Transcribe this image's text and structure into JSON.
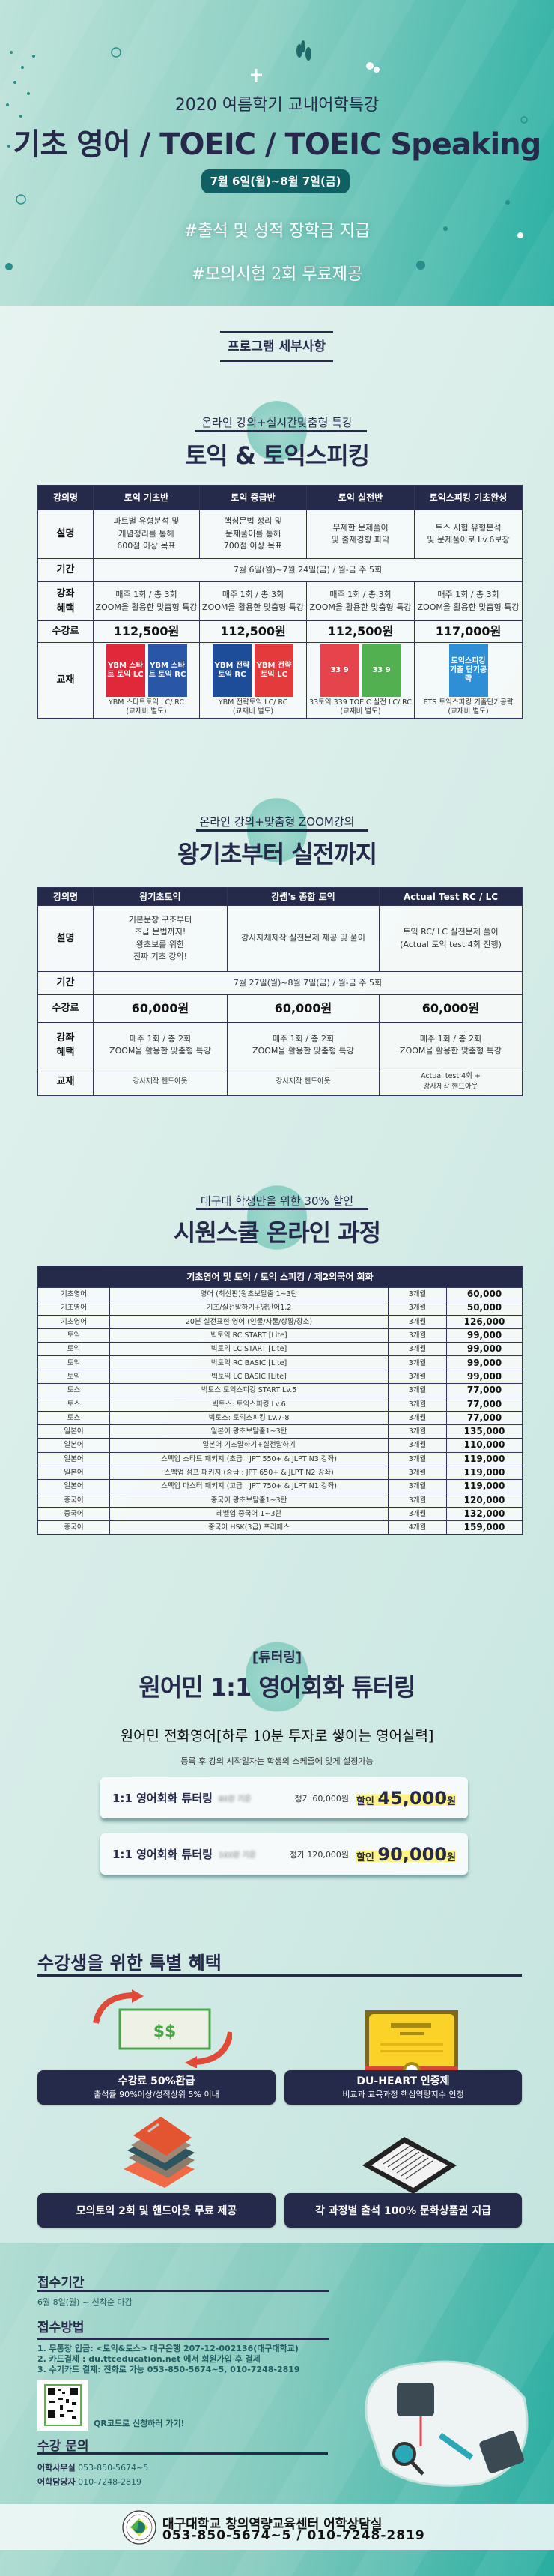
{
  "header": {
    "subtitle": "2020 여름학기 교내어학특강",
    "title": "기초 영어 / TOEIC / TOEIC Speaking",
    "date": "7월 6일(월)~8월 7일(금)",
    "hashtags": [
      "#출석 및 성적 장학금 지급",
      "#모의시험 2회 무료제공"
    ]
  },
  "program_label": "프로그램 세부사항",
  "section1": {
    "subtitle": "온라인 강의+실시간맞춤형 특강",
    "title": "토익 & 토익스피킹",
    "headers": [
      "강의명",
      "토익 기초반",
      "토익 중급반",
      "토익 실전반",
      "토익스피킹 기초완성"
    ],
    "row_labels": {
      "description": "설명",
      "period": "기간",
      "benefit": "강좌\n혜택",
      "fee": "수강료",
      "textbook": "교재"
    },
    "descriptions": [
      "파트별 유형분석 및\n개념정리를 통해\n600점 이상 목표",
      "핵심문법 정리 및\n문제풀이를 통해\n700점 이상 목표",
      "무제한 문제풀이\n및 출제경향 파악",
      "토스 시험 유형분석\n및 문제풀이로 Lv.6보장"
    ],
    "period": "7월 6일(월)~7월 24일(금) / 월-금  주 5회",
    "benefits": [
      "매주 1회 / 총 3회\nZOOM을 활용한 맞춤형 특강",
      "매주 1회 / 총 3회\nZOOM을 활용한 맞춤형 특강",
      "매주 1회 / 총 3회\nZOOM을 활용한 맞춤형 특강",
      "매주 1회 / 총 3회\nZOOM을 활용한 맞춤형 특강"
    ],
    "fees": [
      "112,500원",
      "112,500원",
      "112,500원",
      "117,000원"
    ],
    "textbooks": [
      {
        "covers": [
          {
            "label": "YBM 스타트 토익 LC",
            "color": "#e0283a"
          },
          {
            "label": "YBM 스타트 토익 RC",
            "color": "#2a56a8"
          }
        ],
        "caption": "YBM 스타트토익 LC/ RC\n(교재비 별도)"
      },
      {
        "covers": [
          {
            "label": "YBM 전략토익 RC",
            "color": "#1d4c98"
          },
          {
            "label": "YBM 전략토익 LC",
            "color": "#e43a3c"
          }
        ],
        "caption": "YBM 전략토익 LC/ RC\n(교재비 별도)"
      },
      {
        "covers": [
          {
            "label": "33 9",
            "color": "#e5444d"
          },
          {
            "label": "33 9",
            "color": "#52b050"
          }
        ],
        "caption": "33토익 339 TOEIC 실전 LC/ RC\n(교재비 별도)"
      },
      {
        "covers": [
          {
            "label": "토익스피킹 기출 단기공략",
            "color": "#2f8fd6"
          }
        ],
        "caption": "ETS 토익스피킹 기출단기공략\n(교재비 별도)"
      }
    ]
  },
  "section2": {
    "subtitle": "온라인 강의+맞춤형 ZOOM강의",
    "title": "왕기초부터 실전까지",
    "headers": [
      "강의명",
      "왕기초토익",
      "강쌤's 종합 토익",
      "Actual Test RC / LC"
    ],
    "row_labels": {
      "description": "설명",
      "period": "기간",
      "fee": "수강료",
      "benefit": "강좌\n혜택",
      "textbook": "교재"
    },
    "descriptions": [
      "기본문장 구조부터\n초급 문법까지!\n왕초보를 위한\n진짜 기초 강의!",
      "강사자체제작 실전문제 제공 및 풀이",
      "토익 RC/ LC 실전문제 풀이\n(Actual 토익 test 4회 진행)"
    ],
    "period": "7월 27일(월)~8월 7일(금) / 월-금  주 5회",
    "fees": [
      "60,000원",
      "60,000원",
      "60,000원"
    ],
    "benefits": [
      "매주 1회 / 총 2회\nZOOM을 활용한 맞춤형 특강",
      "매주 1회 / 총 2회\nZOOM을 활용한 맞춤형 특강",
      "매주 1회 / 총 2회\nZOOM을 활용한 맞춤형 특강"
    ],
    "textbooks": [
      "강사제작 핸드아웃",
      "강사제작 핸드아웃",
      "Actual test 4회 +\n강사제작 핸드아웃"
    ]
  },
  "section3": {
    "subtitle": "대구대 학생만을 위한 30% 할인",
    "title": "시원스쿨 온라인 과정",
    "table_header": "기초영어 및 토익 / 토익 스피킹 / 제2외국어 회화",
    "rows": [
      [
        "기초영어",
        "영어 (최신판)왕초보탈출 1~3탄",
        "3개월",
        "60,000"
      ],
      [
        "기초영어",
        "기초/실전말하기+영단어1,2",
        "3개월",
        "50,000"
      ],
      [
        "기초영어",
        "20분 실전표현 영어 (인물/사물/상황/장소)",
        "3개월",
        "126,000"
      ],
      [
        "토익",
        "빅토익 RC START [Lite]",
        "3개월",
        "99,000"
      ],
      [
        "토익",
        "빅토익 LC START [Lite]",
        "3개월",
        "99,000"
      ],
      [
        "토익",
        "빅토익 RC BASIC [Lite]",
        "3개월",
        "99,000"
      ],
      [
        "토익",
        "빅토익 LC BASIC [Lite]",
        "3개월",
        "99,000"
      ],
      [
        "토스",
        "빅토스 토익스피킹 START Lv.5",
        "3개월",
        "77,000"
      ],
      [
        "토스",
        "빅토스: 토익스피킹 Lv.6",
        "3개월",
        "77,000"
      ],
      [
        "토스",
        "빅토스: 토익스피킹 Lv.7-8",
        "3개월",
        "77,000"
      ],
      [
        "일본어",
        "일본어 왕초보탈출1~3탄",
        "3개월",
        "135,000"
      ],
      [
        "일본어",
        "일본어 기초말하기+실전말하기",
        "3개월",
        "110,000"
      ],
      [
        "일본어",
        "스펙업 스타트 패키지 (초급 : JPT 550+ & JLPT N3 강좌)",
        "3개월",
        "119,000"
      ],
      [
        "일본어",
        "스펙업 점프 패키지 (중급 : JPT 650+ & JLPT N2 강좌)",
        "3개월",
        "119,000"
      ],
      [
        "일본어",
        "스펙업 마스터 패키지 (고급 : JPT 750+ & JLPT N1 강좌)",
        "3개월",
        "119,000"
      ],
      [
        "중국어",
        "중국어 왕초보탈출1~3탄",
        "3개월",
        "120,000"
      ],
      [
        "중국어",
        "레벨업 중국어 1~3탄",
        "3개월",
        "132,000"
      ],
      [
        "중국어",
        "중국어 HSK(3급) 프리패스",
        "4개월",
        "159,000"
      ]
    ]
  },
  "tutoring": {
    "tag": "[튜터링]",
    "title": "원어민 1:1 영어회화 튜터링",
    "slogan": "원어민 전화영어[하루 10분 투자로 쌓이는 영어실력]",
    "note": "등록 후 강의 시작일자는 학생의 스케줄에 맞게 설정가능",
    "plans": [
      {
        "name": "1:1 영어회화 튜터링",
        "basis": "80분 기준",
        "regular": "정가 60,000원",
        "discount_label": "할인",
        "price": "45,000",
        "unit": "원"
      },
      {
        "name": "1:1 영어회화 튜터링",
        "basis": "160분 기준",
        "regular": "정가 120,000원",
        "discount_label": "할인",
        "price": "90,000",
        "unit": "원"
      }
    ]
  },
  "benefits": {
    "title": "수강생을 위한 특별 혜택",
    "money_icon_text": "$$",
    "items": [
      {
        "title": "수강료 50%환급",
        "desc": "출석률 90%이상/성적상위 5% 이내"
      },
      {
        "title": "DU-HEART 인증제",
        "desc": "비교과 교육과정 핵심역량지수 인정"
      },
      {
        "title": "모의토익 2회 및 핸드아웃 무료 제공",
        "desc": ""
      },
      {
        "title": "각 과정별 출석 100% 문화상품권 지급",
        "desc": ""
      }
    ]
  },
  "footer": {
    "period_title": "접수기간",
    "period": "6월 8일(월) ~ 선착순 마감",
    "method_title": "접수방법",
    "methods": [
      "1. 무통장 입금: <토익&토스> 대구은행 207-12-002136(대구대학교)",
      "2. 카드결제 : du.ttceducation.net 에서 회원가입 후 결제",
      "3. 수기카드 결제: 전화로 가능 053-850-5674~5, 010-7248-2819"
    ],
    "qr_text": "QR코드로 신청하러 가기!",
    "contact_title": "수강 문의",
    "contacts": [
      {
        "label": "어학사무실",
        "value": "053-850-5674~5"
      },
      {
        "label": "어학담당자",
        "value": "010-7248-2819"
      }
    ],
    "band_line1": "대구대학교 창의역량교육센터 어학상담실",
    "band_line2": "053-850-5674~5 / 010-7248-2819"
  },
  "colors": {
    "navy": "#262a4a",
    "teal": "#2bb0a3",
    "date_pill": "#0f5f63",
    "highlight": "#fff38a"
  }
}
